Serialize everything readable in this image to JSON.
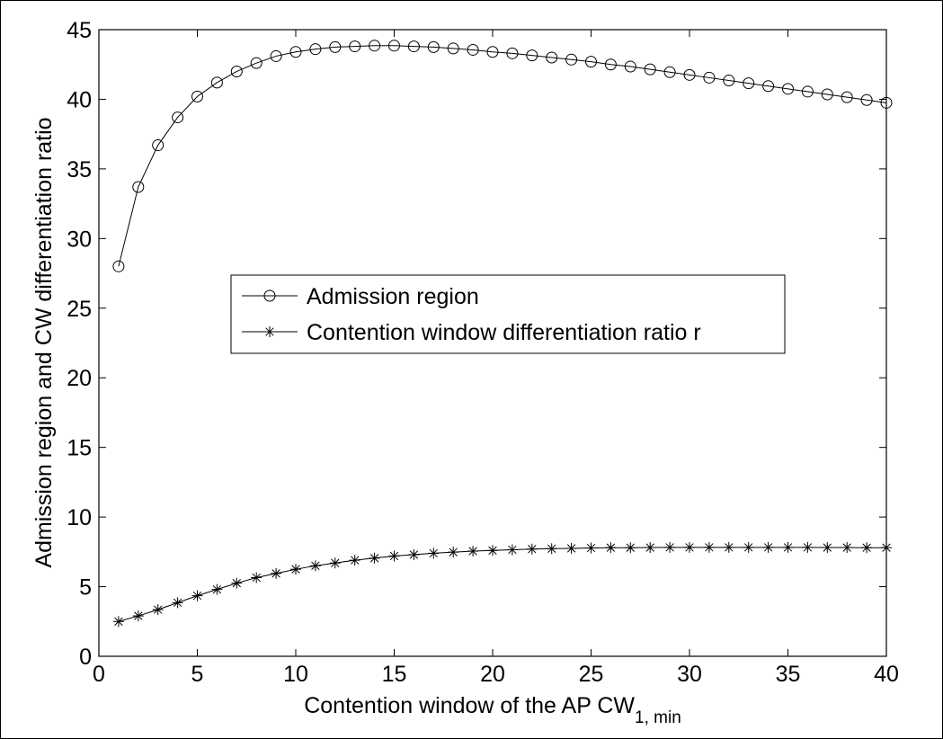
{
  "chart_data": {
    "type": "line",
    "title": "",
    "xlabel": "Contention window of the AP CW",
    "xlabel_subscript": "1, min",
    "ylabel": "Admission region and CW differentiation ratio",
    "xlim": [
      0,
      40
    ],
    "ylim": [
      0,
      45
    ],
    "xticks": [
      0,
      5,
      10,
      15,
      20,
      25,
      30,
      35,
      40
    ],
    "yticks": [
      0,
      5,
      10,
      15,
      20,
      25,
      30,
      35,
      40,
      45
    ],
    "grid": false,
    "legend_position": "center-left",
    "x": [
      1,
      2,
      3,
      4,
      5,
      6,
      7,
      8,
      9,
      10,
      11,
      12,
      13,
      14,
      15,
      16,
      17,
      18,
      19,
      20,
      21,
      22,
      23,
      24,
      25,
      26,
      27,
      28,
      29,
      30,
      31,
      32,
      33,
      34,
      35,
      36,
      37,
      38,
      39,
      40
    ],
    "series": [
      {
        "name": "Admission region",
        "marker": "circle",
        "values": [
          28.0,
          33.7,
          36.7,
          38.7,
          40.2,
          41.2,
          42.0,
          42.6,
          43.1,
          43.4,
          43.6,
          43.75,
          43.8,
          43.85,
          43.85,
          43.8,
          43.75,
          43.65,
          43.55,
          43.4,
          43.3,
          43.15,
          43.0,
          42.85,
          42.7,
          42.5,
          42.35,
          42.15,
          41.95,
          41.75,
          41.55,
          41.35,
          41.15,
          40.95,
          40.75,
          40.55,
          40.35,
          40.15,
          39.95,
          39.75
        ]
      },
      {
        "name": "Contention window differentiation ratio r",
        "marker": "star",
        "values": [
          2.5,
          2.9,
          3.35,
          3.85,
          4.35,
          4.8,
          5.25,
          5.65,
          5.95,
          6.25,
          6.5,
          6.7,
          6.9,
          7.05,
          7.2,
          7.3,
          7.4,
          7.48,
          7.55,
          7.6,
          7.65,
          7.7,
          7.73,
          7.75,
          7.78,
          7.8,
          7.8,
          7.81,
          7.82,
          7.82,
          7.82,
          7.82,
          7.82,
          7.82,
          7.82,
          7.82,
          7.81,
          7.81,
          7.8,
          7.8
        ]
      }
    ],
    "colors": {
      "line": "#000000",
      "axis": "#000000",
      "background": "#ffffff"
    }
  }
}
